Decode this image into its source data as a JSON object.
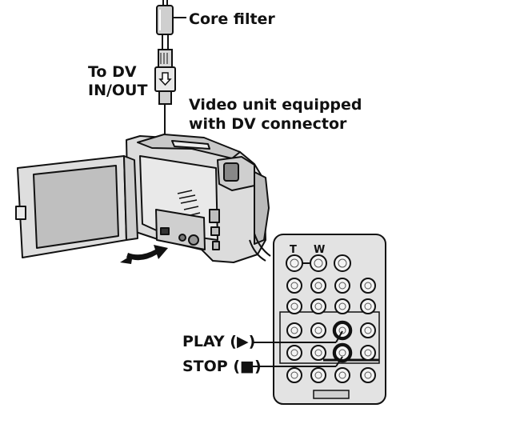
{
  "labels": {
    "core_filter": "Core filter",
    "to_dv_line1": "To DV",
    "to_dv_line2": "IN/OUT",
    "video_unit_line1": "Video unit equipped",
    "video_unit_line2": "with DV connector",
    "play": "PLAY (▶)",
    "stop": "STOP (■)"
  },
  "remote": {
    "top_labels": [
      "T",
      "W"
    ]
  },
  "colors": {
    "line": "#111111",
    "remote_body": "#e6e6e6",
    "camera_body": "#dcdcdc"
  },
  "icons": [
    "core-filter-icon",
    "dv-plug-icon",
    "camcorder-icon",
    "remote-control-icon",
    "rotate-arrow-icon"
  ]
}
